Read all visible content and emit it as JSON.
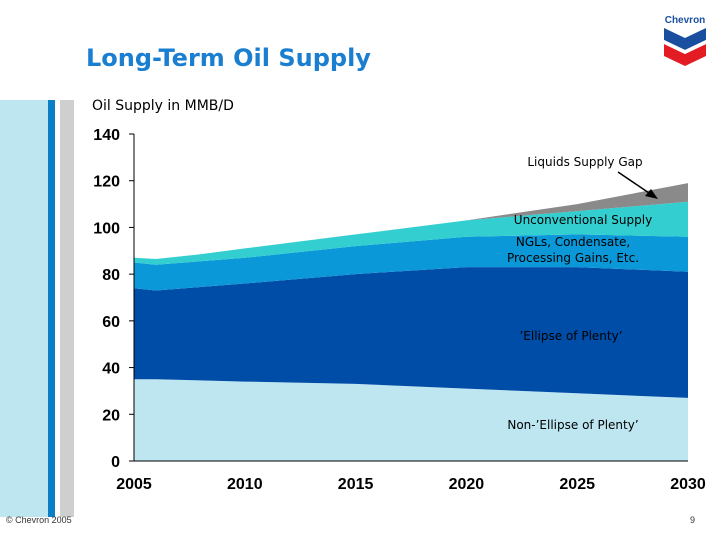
{
  "slide": {
    "title": "Long-Term Oil Supply",
    "logo_text": "Chevron",
    "copyright": "© Chevron 2005",
    "page_number": "9"
  },
  "colors": {
    "title": "#1a7fd0",
    "non_ellipse": "#bde6f1",
    "ellipse": "#004da8",
    "ngl": "#0b98d8",
    "unconventional": "#33cfd0",
    "gap": "#8a8a8a"
  },
  "chart_data": {
    "type": "area",
    "stacked": true,
    "ylabel": "Oil Supply in MMB/D",
    "xlabel": "",
    "ylim": [
      0,
      140
    ],
    "yticks": [
      0,
      20,
      40,
      60,
      80,
      100,
      120,
      140
    ],
    "xlim": [
      2005,
      2030
    ],
    "xticks": [
      2005,
      2010,
      2015,
      2020,
      2025,
      2030
    ],
    "x": [
      2005,
      2006,
      2008,
      2010,
      2015,
      2020,
      2025,
      2030
    ],
    "series": [
      {
        "name": "Non-'Ellipse of Plenty'",
        "values": [
          35,
          35,
          34.5,
          34,
          33,
          31,
          29,
          27
        ]
      },
      {
        "name": "'Ellipse of Plenty'",
        "values": [
          39,
          38,
          40,
          42,
          47,
          52,
          54,
          54
        ]
      },
      {
        "name": "NGLs, Condensate, Processing Gains, Etc.",
        "values": [
          11,
          11,
          11,
          11,
          12,
          13,
          14,
          15
        ]
      },
      {
        "name": "Unconventional Supply",
        "values": [
          2,
          2.5,
          3,
          4,
          5,
          7,
          10,
          15
        ]
      },
      {
        "name": "Liquids Supply Gap",
        "values": [
          0,
          0,
          0,
          0,
          0,
          0,
          3,
          8
        ]
      }
    ],
    "annotations": {
      "gap": "Liquids Supply Gap",
      "unconventional": "Unconventional Supply",
      "ngl_line1": "NGLs, Condensate,",
      "ngl_line2": "Processing Gains, Etc.",
      "ellipse": "’Ellipse of Plenty’",
      "non_ellipse": "Non-’Ellipse of Plenty’"
    }
  }
}
